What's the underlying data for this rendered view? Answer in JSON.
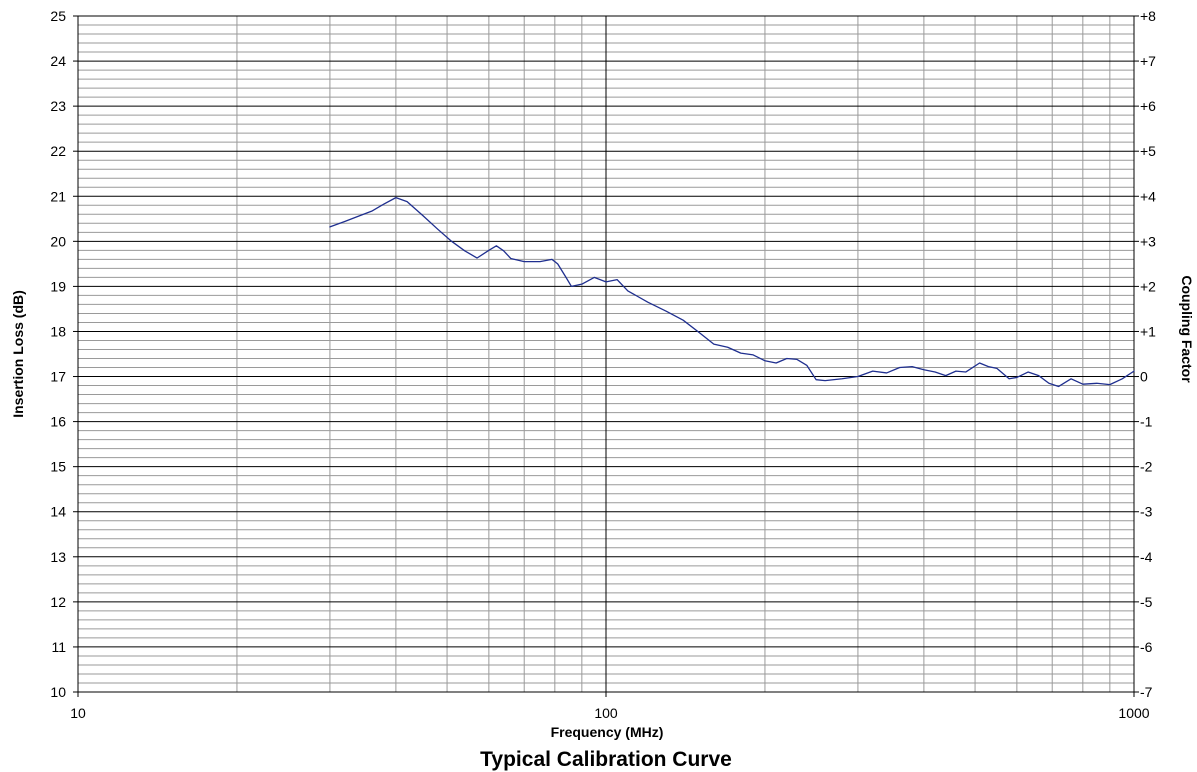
{
  "chart_data": {
    "type": "line",
    "title": "Typical Calibration Curve",
    "xlabel": "Frequency (MHz)",
    "ylabel": "Insertion Loss (dB)",
    "y2label": "Coupling Factor",
    "x_scale": "log",
    "xlim": [
      10,
      1000
    ],
    "ylim": [
      10,
      25
    ],
    "y2lim": [
      -7,
      8
    ],
    "grid": true,
    "x_tick_labels": [
      "10",
      "100",
      "1000"
    ],
    "y_tick_labels": [
      "10",
      "11",
      "12",
      "13",
      "14",
      "15",
      "16",
      "17",
      "18",
      "19",
      "20",
      "21",
      "22",
      "23",
      "24",
      "25"
    ],
    "y2_tick_labels": [
      "-7",
      "-6",
      "-5",
      "-4",
      "-3",
      "-2",
      "-1",
      "0",
      "+1",
      "+2",
      "+3",
      "+4",
      "+5",
      "+6",
      "+7",
      "+8"
    ],
    "series": [
      {
        "color": "#1f2f8f",
        "x": [
          30,
          32,
          34,
          36,
          38,
          40,
          42,
          45,
          48,
          51,
          54,
          57,
          60,
          62,
          64,
          66,
          70,
          75,
          79,
          81,
          84,
          86,
          90,
          95,
          100,
          105,
          110,
          120,
          130,
          140,
          150,
          160,
          170,
          180,
          190,
          200,
          210,
          220,
          230,
          240,
          250,
          260,
          280,
          300,
          320,
          340,
          360,
          380,
          400,
          420,
          440,
          460,
          480,
          510,
          530,
          550,
          580,
          600,
          630,
          660,
          690,
          720,
          760,
          800,
          850,
          900,
          950,
          1000
        ],
        "values": [
          20.32,
          20.44,
          20.56,
          20.67,
          20.83,
          20.97,
          20.88,
          20.57,
          20.27,
          20.0,
          19.79,
          19.63,
          19.8,
          19.9,
          19.79,
          19.62,
          19.55,
          19.55,
          19.6,
          19.5,
          19.2,
          19.0,
          19.05,
          19.2,
          19.1,
          19.15,
          18.9,
          18.65,
          18.45,
          18.25,
          17.98,
          17.72,
          17.65,
          17.52,
          17.48,
          17.35,
          17.3,
          17.4,
          17.38,
          17.25,
          16.93,
          16.91,
          16.95,
          17.0,
          17.12,
          17.08,
          17.2,
          17.22,
          17.15,
          17.1,
          17.02,
          17.12,
          17.1,
          17.3,
          17.22,
          17.18,
          16.95,
          16.98,
          17.1,
          17.02,
          16.85,
          16.78,
          16.95,
          16.83,
          16.85,
          16.82,
          16.95,
          17.12
        ]
      }
    ]
  }
}
